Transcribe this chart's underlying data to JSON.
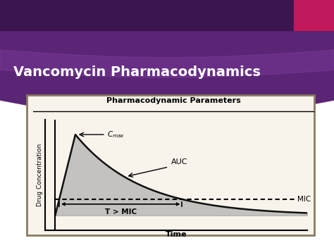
{
  "title_text": "Vancomycin Pharmacodynamics",
  "title_bg_top": "#3a1550",
  "title_bg_mid": "#5a2575",
  "title_bg_bot": "#7a3590",
  "title_text_color": "#ffffff",
  "accent_color": "#c0185a",
  "chart_title": "Pharmacodynamic Parameters",
  "chart_bg": "#f8f4ec",
  "chart_border_color": "#8a7a60",
  "ylabel": "Drug Concentration",
  "xlabel": "Time",
  "mic_label": "MIC",
  "cmax_label": "C",
  "auc_label": "AUC",
  "tmic_label": "T > MIC",
  "curve_color": "#111111",
  "fill_color": "#999999",
  "fill_alpha": 0.55,
  "mic_level": 0.2,
  "t_peak": 0.8,
  "decay_rate": 0.38,
  "t_max": 10.0,
  "outer_bg": "#f0eef5",
  "slide_bg_color": "#e8e4f0"
}
